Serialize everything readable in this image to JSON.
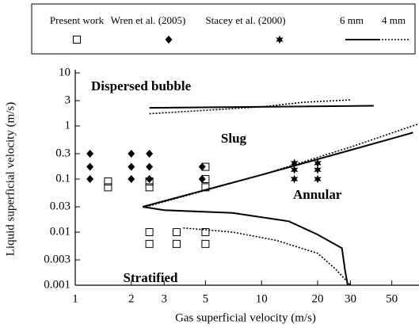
{
  "chart_data": {
    "type": "scatter",
    "xlabel": "Gas superficial velocity (m/s)",
    "ylabel": "Liquid superficial velocity (m/s)",
    "xscale": "log",
    "yscale": "log",
    "xlim": [
      1,
      70
    ],
    "ylim": [
      0.001,
      10
    ],
    "xticks": [
      1,
      2,
      3,
      5,
      10,
      20,
      30,
      50
    ],
    "yticks": [
      0.001,
      0.003,
      0.01,
      0.03,
      0.1,
      0.3,
      1,
      3,
      10
    ],
    "legend": "top",
    "annotations": [
      "Dispersed bubble",
      "Slug",
      "Annular",
      "Stratified"
    ],
    "series": [
      {
        "name": "Present work",
        "marker": "square",
        "color": "#000000",
        "x": [
          1.5,
          1.5,
          2.5,
          2.5,
          5,
          5,
          5,
          2.5,
          2.5,
          3.5,
          3.5,
          5,
          5
        ],
        "values": [
          0.07,
          0.09,
          0.07,
          0.09,
          0.07,
          0.1,
          0.17,
          0.006,
          0.01,
          0.006,
          0.01,
          0.006,
          0.01
        ]
      },
      {
        "name": "Wren et al. (2005)",
        "marker": "diamond",
        "color": "#000000",
        "x": [
          1.2,
          1.2,
          1.2,
          2,
          2,
          2,
          2.5,
          2.5,
          2.5,
          4.8,
          4.8
        ],
        "values": [
          0.3,
          0.17,
          0.1,
          0.3,
          0.17,
          0.1,
          0.3,
          0.17,
          0.1,
          0.17,
          0.1
        ]
      },
      {
        "name": "Stacey et al. (2000)",
        "marker": "star",
        "color": "#000000",
        "x": [
          15,
          15,
          15,
          20,
          20,
          20
        ],
        "values": [
          0.2,
          0.15,
          0.1,
          0.2,
          0.15,
          0.1
        ]
      },
      {
        "name": "6 mm",
        "line": "solid",
        "color": "#000000",
        "x": [
          2.5,
          40,
          null,
          2.3,
          10,
          30,
          65,
          null,
          2.3,
          3,
          7,
          14,
          20,
          27,
          28,
          29
        ],
        "values": [
          2.2,
          2.4,
          null,
          0.03,
          0.12,
          0.35,
          0.75,
          null,
          0.03,
          0.026,
          0.023,
          0.016,
          0.009,
          0.005,
          0.002,
          0.001
        ]
      },
      {
        "name": "4 mm",
        "line": "dotted",
        "color": "#000000",
        "x": [
          2.5,
          10,
          17,
          30,
          null,
          2.4,
          10,
          30,
          70,
          null,
          3.8,
          7,
          12,
          20,
          25,
          30
        ],
        "values": [
          1.7,
          2.3,
          2.8,
          3.1,
          null,
          0.03,
          0.12,
          0.4,
          1.1,
          null,
          0.012,
          0.01,
          0.007,
          0.004,
          0.002,
          0.001
        ]
      }
    ]
  }
}
